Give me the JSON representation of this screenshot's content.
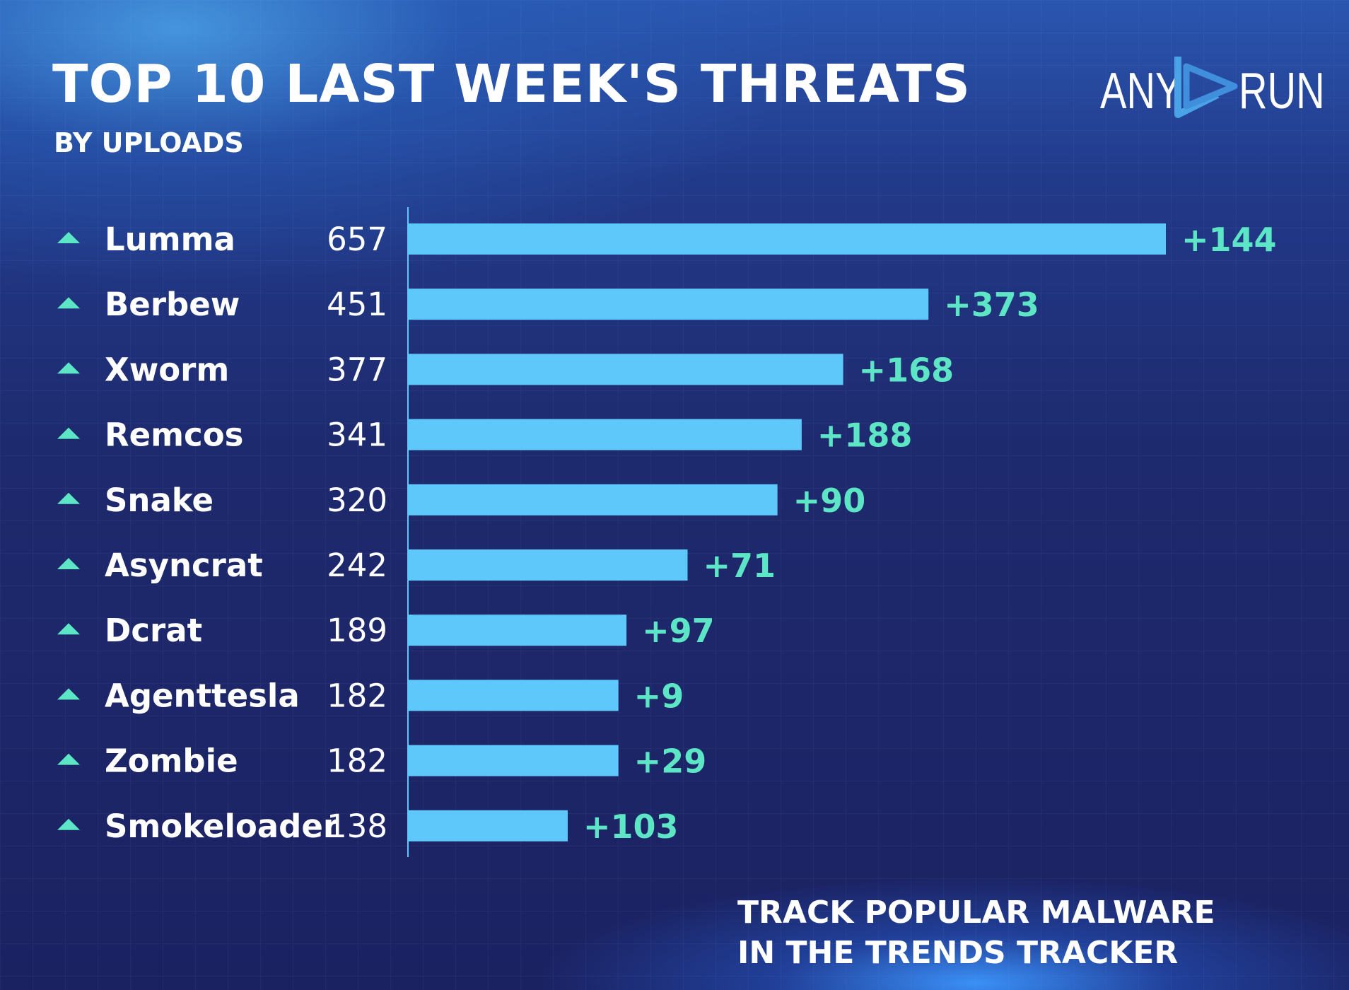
{
  "header": {
    "title": "TOP 10 LAST WEEK'S THREATS",
    "subtitle": "BY UPLOADS"
  },
  "logo": {
    "left": "ANY",
    "right": "RUN"
  },
  "footer": {
    "line1": "TRACK POPULAR MALWARE",
    "line2": "IN THE TRENDS TRACKER"
  },
  "colors": {
    "bar": "#5ec8fb",
    "change": "#5de6c6",
    "trend_arrow": "#5de6c6",
    "text": "#ffffff"
  },
  "chart_data": {
    "type": "bar",
    "orientation": "horizontal",
    "title": "TOP 10 LAST WEEK'S THREATS",
    "subtitle": "BY UPLOADS",
    "categories": [
      "Lumma",
      "Berbew",
      "Xworm",
      "Remcos",
      "Snake",
      "Asyncrat",
      "Dcrat",
      "Agenttesla",
      "Zombie",
      "Smokeloader"
    ],
    "values": [
      657,
      451,
      377,
      341,
      320,
      242,
      189,
      182,
      182,
      138
    ],
    "changes": [
      "+144",
      "+373",
      "+168",
      "+188",
      "+90",
      "+71",
      "+97",
      "+9",
      "+29",
      "+103"
    ],
    "trend": [
      "up",
      "up",
      "up",
      "up",
      "up",
      "up",
      "up",
      "up",
      "up",
      "up"
    ],
    "xlim": [
      0,
      657
    ],
    "grid": false,
    "legend": "none"
  }
}
